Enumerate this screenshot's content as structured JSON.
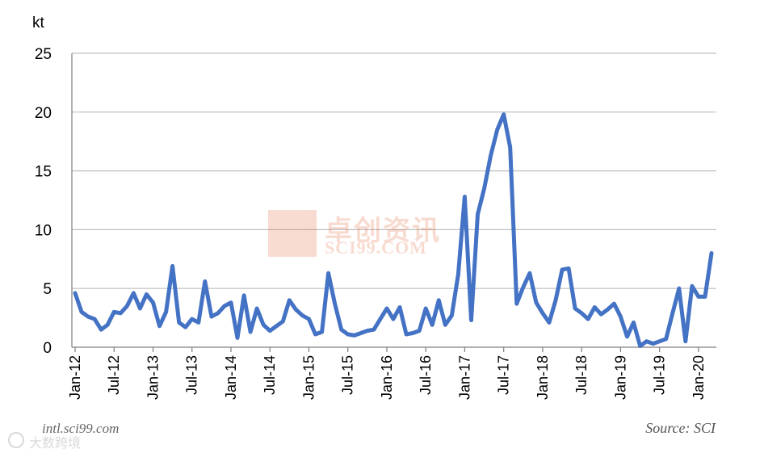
{
  "chart_data": {
    "type": "line",
    "ylabel": "kt",
    "ylim": [
      0,
      25
    ],
    "yticks": [
      "0",
      "5",
      "10",
      "15",
      "20",
      "25"
    ],
    "xtick_labels": [
      "Jan-12",
      "Jul-12",
      "Jan-13",
      "Jul-13",
      "Jan-14",
      "Jul-14",
      "Jan-15",
      "Jul-15",
      "Jan-16",
      "Jul-16",
      "Jan-17",
      "Jul-17",
      "Jan-18",
      "Jul-18",
      "Jan-19",
      "Jul-19",
      "Jan-20"
    ],
    "grid": "horizontal",
    "series": [
      {
        "color": "#4472C4",
        "values": [
          4.6,
          3.0,
          2.6,
          2.4,
          1.5,
          1.9,
          3.0,
          2.9,
          3.5,
          4.6,
          3.3,
          4.5,
          3.8,
          1.8,
          3.0,
          6.9,
          2.1,
          1.7,
          2.4,
          2.1,
          5.6,
          2.6,
          2.9,
          3.5,
          3.8,
          0.8,
          4.4,
          1.3,
          3.3,
          1.9,
          1.4,
          1.8,
          2.2,
          4.0,
          3.2,
          2.7,
          2.4,
          1.1,
          1.3,
          6.3,
          3.7,
          1.5,
          1.1,
          1.0,
          1.2,
          1.4,
          1.5,
          2.4,
          3.3,
          2.4,
          3.4,
          1.1,
          1.2,
          1.4,
          3.3,
          1.9,
          4.0,
          1.9,
          2.7,
          6.2,
          12.8,
          2.3,
          11.3,
          13.5,
          16.3,
          18.5,
          19.8,
          17.0,
          3.7,
          5.1,
          6.3,
          3.8,
          2.9,
          2.1,
          4.0,
          6.6,
          6.7,
          3.3,
          2.9,
          2.4,
          3.4,
          2.8,
          3.2,
          3.7,
          2.6,
          0.9,
          2.1,
          0.1,
          0.5,
          0.3,
          0.5,
          0.7,
          2.9,
          5.0,
          0.5,
          5.2,
          4.3,
          4.3,
          8.0
        ]
      }
    ]
  },
  "source_text": "Source: SCI",
  "footer_url": "intl.sci99.com",
  "watermark": {
    "cn": "卓创资讯",
    "en": "SCI99.COM"
  },
  "footer_logo_text": "大数跨境"
}
